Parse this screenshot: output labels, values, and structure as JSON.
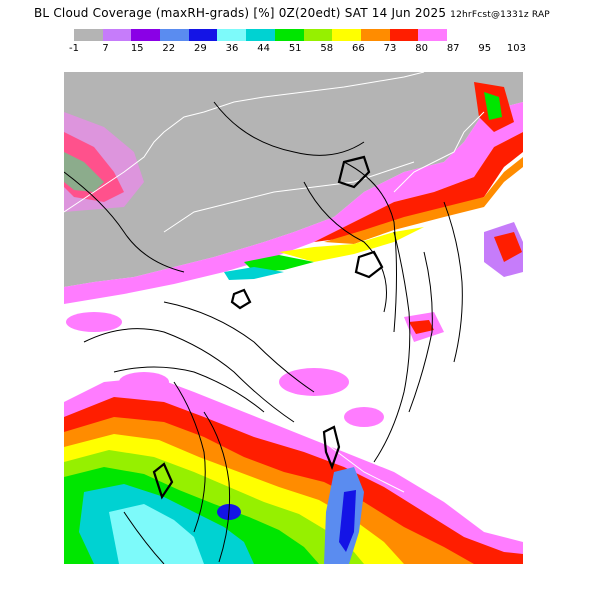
{
  "title": {
    "main": "BL Cloud Coverage (maxRH-grads) [%] 0Z(20edt) SAT 14 Jun 2025",
    "run": "12hrFcst@1331z RAP"
  },
  "legend": {
    "tick_labels": [
      "-1",
      "7",
      "15",
      "22",
      "29",
      "36",
      "44",
      "51",
      "58",
      "66",
      "73",
      "80",
      "87",
      "95",
      "103"
    ],
    "colors": [
      "#b4b4b4",
      "#c67cfa",
      "#8a00e6",
      "#5a8cf0",
      "#1414e6",
      "#7dfafa",
      "#00d2d2",
      "#00e600",
      "#96f000",
      "#ffff00",
      "#ff8c00",
      "#ff1e00",
      "#ff7cff",
      "#ffffff"
    ]
  },
  "map": {
    "region": "Southeast US / western Atlantic",
    "grey_fill": "#b4b4b4",
    "land_outline_color": "#ffffff",
    "contour_color": "#000000"
  }
}
